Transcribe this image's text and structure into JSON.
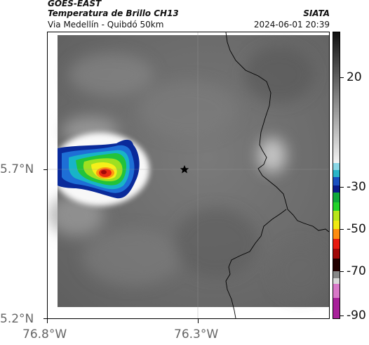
{
  "header": {
    "source": "GOES-EAST",
    "product": "Temperatura de Brillo CH13",
    "region": "Via Medellín - Quibdó 50km",
    "brand": "SIATA",
    "datetime": "2024-06-01 20:39"
  },
  "axes": {
    "y_labels": [
      "5.7°N",
      "5.2°N"
    ],
    "x_labels": [
      "76.8°W",
      "76.3°W"
    ]
  },
  "colorbar": {
    "labels": [
      "20",
      "-30",
      "-50",
      "-70",
      "-90"
    ]
  },
  "colors": {
    "background_gray": "#6e6e6e",
    "border_line": "#000000",
    "marker": "#000000"
  },
  "legend_icons": {
    "marker": "star-icon"
  }
}
